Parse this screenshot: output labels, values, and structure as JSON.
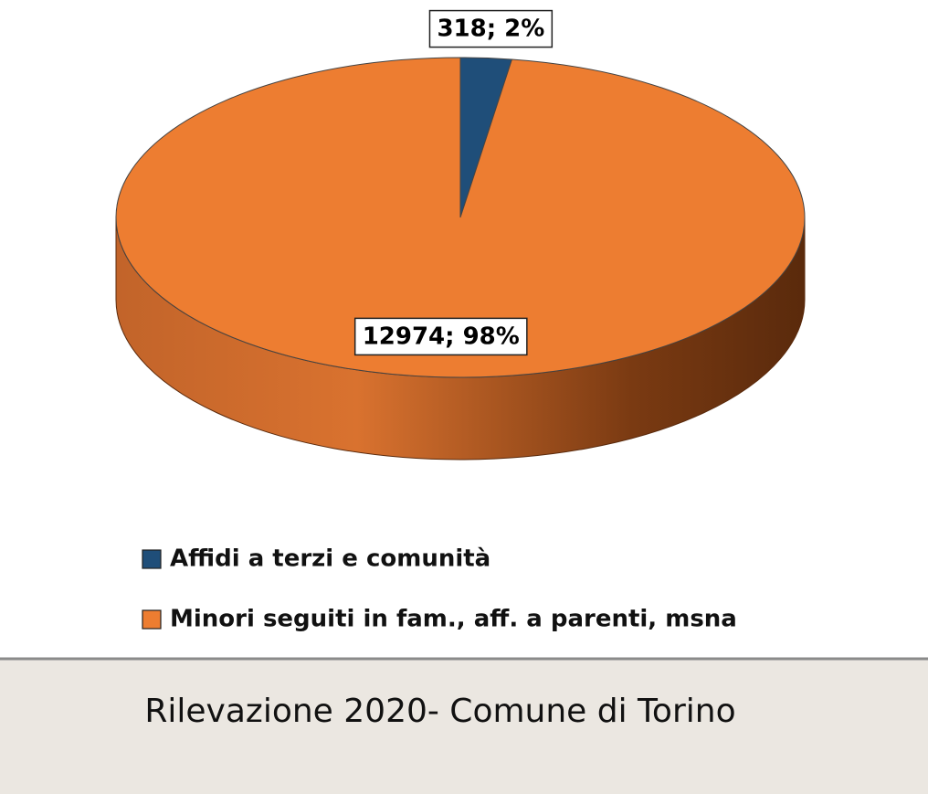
{
  "chart_data": {
    "type": "pie",
    "three_d": true,
    "categories": [
      "Affidi a terzi e comunità",
      "Minori seguiti in fam., aff. a parenti, msna"
    ],
    "values": [
      318,
      12974
    ],
    "value_labels": [
      "318; 2%",
      "12974; 98%"
    ],
    "colors": [
      "#1f4e79",
      "#ed7d31"
    ],
    "legend": "bottom"
  },
  "footer": {
    "text": "Rilevazione 2020- Comune di Torino"
  }
}
